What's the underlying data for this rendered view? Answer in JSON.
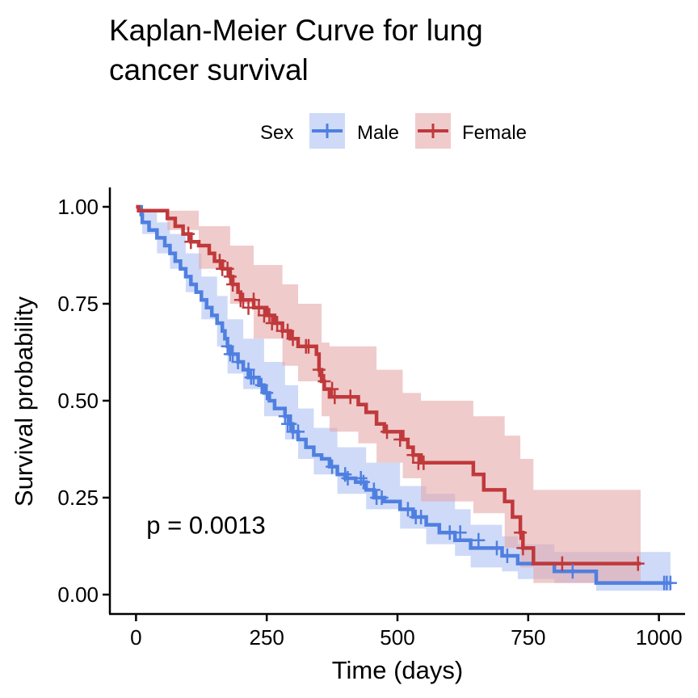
{
  "chart_data": {
    "type": "line",
    "title_lines": [
      "Kaplan-Meier Curve for lung",
      "cancer survival"
    ],
    "xlabel": "Time (days)",
    "ylabel": "Survival probability",
    "xlim": [
      -50,
      1050
    ],
    "ylim": [
      -0.05,
      1.05
    ],
    "x_ticks": [
      0,
      250,
      500,
      750,
      1000
    ],
    "x_tick_labels": [
      "0",
      "250",
      "500",
      "750",
      "1000"
    ],
    "y_ticks": [
      0,
      0.25,
      0.5,
      0.75,
      1
    ],
    "y_tick_labels": [
      "0.00",
      "0.25",
      "0.50",
      "0.75",
      "1.00"
    ],
    "legend": {
      "title": "Sex",
      "position": "top",
      "entries": [
        "Male",
        "Female"
      ]
    },
    "annotation": {
      "text": "p = 0.0013",
      "x": 20,
      "y": 0.18
    },
    "grid": false,
    "series": [
      {
        "name": "Male",
        "color": "#4f7fe0",
        "band_color": "#aec2f4",
        "steps": [
          [
            0,
            1.0
          ],
          [
            10,
            0.98
          ],
          [
            12,
            0.96
          ],
          [
            25,
            0.94
          ],
          [
            40,
            0.92
          ],
          [
            55,
            0.9
          ],
          [
            65,
            0.88
          ],
          [
            75,
            0.86
          ],
          [
            85,
            0.84
          ],
          [
            95,
            0.82
          ],
          [
            105,
            0.8
          ],
          [
            115,
            0.78
          ],
          [
            125,
            0.76
          ],
          [
            135,
            0.74
          ],
          [
            145,
            0.72
          ],
          [
            155,
            0.7
          ],
          [
            165,
            0.68
          ],
          [
            170,
            0.66
          ],
          [
            175,
            0.64
          ],
          [
            180,
            0.62
          ],
          [
            195,
            0.6
          ],
          [
            205,
            0.58
          ],
          [
            215,
            0.56
          ],
          [
            235,
            0.54
          ],
          [
            245,
            0.52
          ],
          [
            255,
            0.5
          ],
          [
            265,
            0.48
          ],
          [
            285,
            0.46
          ],
          [
            295,
            0.44
          ],
          [
            300,
            0.42
          ],
          [
            310,
            0.4
          ],
          [
            325,
            0.38
          ],
          [
            340,
            0.36
          ],
          [
            355,
            0.35
          ],
          [
            370,
            0.33
          ],
          [
            385,
            0.31
          ],
          [
            400,
            0.3
          ],
          [
            420,
            0.29
          ],
          [
            440,
            0.27
          ],
          [
            455,
            0.25
          ],
          [
            475,
            0.24
          ],
          [
            505,
            0.22
          ],
          [
            530,
            0.2
          ],
          [
            555,
            0.18
          ],
          [
            580,
            0.16
          ],
          [
            610,
            0.14
          ],
          [
            640,
            0.12
          ],
          [
            700,
            0.1
          ],
          [
            730,
            0.08
          ],
          [
            800,
            0.06
          ],
          [
            880,
            0.03
          ],
          [
            1022,
            0.03
          ]
        ],
        "lower": [
          [
            0,
            1.0
          ],
          [
            12,
            0.93
          ],
          [
            40,
            0.88
          ],
          [
            65,
            0.84
          ],
          [
            95,
            0.78
          ],
          [
            125,
            0.71
          ],
          [
            155,
            0.64
          ],
          [
            175,
            0.57
          ],
          [
            205,
            0.53
          ],
          [
            245,
            0.46
          ],
          [
            285,
            0.4
          ],
          [
            310,
            0.35
          ],
          [
            340,
            0.31
          ],
          [
            385,
            0.26
          ],
          [
            440,
            0.22
          ],
          [
            505,
            0.17
          ],
          [
            555,
            0.13
          ],
          [
            610,
            0.1
          ],
          [
            640,
            0.07
          ],
          [
            700,
            0.06
          ],
          [
            730,
            0.04
          ],
          [
            800,
            0.03
          ],
          [
            880,
            0.01
          ],
          [
            1022,
            0.01
          ]
        ],
        "upper": [
          [
            0,
            1.0
          ],
          [
            12,
            0.99
          ],
          [
            40,
            0.96
          ],
          [
            65,
            0.93
          ],
          [
            95,
            0.88
          ],
          [
            125,
            0.82
          ],
          [
            155,
            0.77
          ],
          [
            175,
            0.71
          ],
          [
            205,
            0.66
          ],
          [
            245,
            0.6
          ],
          [
            285,
            0.54
          ],
          [
            310,
            0.48
          ],
          [
            340,
            0.43
          ],
          [
            385,
            0.38
          ],
          [
            440,
            0.34
          ],
          [
            505,
            0.28
          ],
          [
            555,
            0.26
          ],
          [
            610,
            0.22
          ],
          [
            640,
            0.18
          ],
          [
            700,
            0.15
          ],
          [
            730,
            0.13
          ],
          [
            800,
            0.11
          ],
          [
            880,
            0.11
          ],
          [
            1022,
            0.11
          ]
        ],
        "censor_x": [
          175,
          180,
          185,
          195,
          215,
          220,
          225,
          240,
          250,
          285,
          290,
          295,
          300,
          310,
          375,
          400,
          405,
          430,
          435,
          455,
          460,
          470,
          520,
          535,
          545,
          600,
          620,
          655,
          690,
          710,
          835,
          1010,
          1015,
          1022
        ],
        "censor_y": [
          0.64,
          0.62,
          0.62,
          0.6,
          0.58,
          0.56,
          0.56,
          0.54,
          0.52,
          0.46,
          0.44,
          0.44,
          0.42,
          0.42,
          0.33,
          0.31,
          0.3,
          0.3,
          0.29,
          0.27,
          0.25,
          0.25,
          0.22,
          0.2,
          0.2,
          0.16,
          0.16,
          0.14,
          0.12,
          0.1,
          0.06,
          0.03,
          0.03,
          0.03
        ]
      },
      {
        "name": "Female",
        "color": "#c0393b",
        "band_color": "#e6a8aa",
        "steps": [
          [
            0,
            1.0
          ],
          [
            5,
            0.99
          ],
          [
            60,
            0.97
          ],
          [
            75,
            0.95
          ],
          [
            90,
            0.93
          ],
          [
            105,
            0.91
          ],
          [
            120,
            0.9
          ],
          [
            140,
            0.88
          ],
          [
            150,
            0.86
          ],
          [
            165,
            0.84
          ],
          [
            180,
            0.82
          ],
          [
            185,
            0.8
          ],
          [
            195,
            0.78
          ],
          [
            200,
            0.76
          ],
          [
            225,
            0.74
          ],
          [
            250,
            0.72
          ],
          [
            265,
            0.7
          ],
          [
            280,
            0.68
          ],
          [
            295,
            0.66
          ],
          [
            310,
            0.64
          ],
          [
            345,
            0.62
          ],
          [
            350,
            0.58
          ],
          [
            355,
            0.55
          ],
          [
            360,
            0.53
          ],
          [
            370,
            0.51
          ],
          [
            425,
            0.49
          ],
          [
            440,
            0.47
          ],
          [
            460,
            0.44
          ],
          [
            475,
            0.42
          ],
          [
            510,
            0.4
          ],
          [
            520,
            0.38
          ],
          [
            530,
            0.36
          ],
          [
            545,
            0.34
          ],
          [
            645,
            0.31
          ],
          [
            665,
            0.27
          ],
          [
            705,
            0.24
          ],
          [
            720,
            0.2
          ],
          [
            735,
            0.16
          ],
          [
            740,
            0.12
          ],
          [
            760,
            0.08
          ],
          [
            965,
            0.08
          ]
        ],
        "lower": [
          [
            0,
            1.0
          ],
          [
            60,
            0.94
          ],
          [
            120,
            0.84
          ],
          [
            180,
            0.75
          ],
          [
            225,
            0.66
          ],
          [
            280,
            0.59
          ],
          [
            310,
            0.55
          ],
          [
            355,
            0.46
          ],
          [
            370,
            0.42
          ],
          [
            425,
            0.39
          ],
          [
            460,
            0.34
          ],
          [
            510,
            0.3
          ],
          [
            545,
            0.24
          ],
          [
            645,
            0.21
          ],
          [
            705,
            0.12
          ],
          [
            735,
            0.07
          ],
          [
            760,
            0.03
          ],
          [
            965,
            0.03
          ]
        ],
        "upper": [
          [
            0,
            1.0
          ],
          [
            60,
            0.99
          ],
          [
            120,
            0.95
          ],
          [
            180,
            0.9
          ],
          [
            225,
            0.85
          ],
          [
            280,
            0.8
          ],
          [
            310,
            0.75
          ],
          [
            355,
            0.65
          ],
          [
            370,
            0.64
          ],
          [
            425,
            0.64
          ],
          [
            460,
            0.58
          ],
          [
            510,
            0.52
          ],
          [
            545,
            0.5
          ],
          [
            645,
            0.46
          ],
          [
            705,
            0.41
          ],
          [
            735,
            0.35
          ],
          [
            760,
            0.27
          ],
          [
            965,
            0.27
          ]
        ],
        "censor_x": [
          100,
          105,
          160,
          165,
          175,
          180,
          185,
          200,
          205,
          215,
          225,
          235,
          245,
          255,
          260,
          270,
          280,
          290,
          300,
          325,
          330,
          350,
          360,
          375,
          380,
          410,
          480,
          505,
          530,
          540,
          550,
          735,
          740,
          815,
          960
        ],
        "censor_y": [
          0.93,
          0.91,
          0.86,
          0.84,
          0.84,
          0.82,
          0.8,
          0.76,
          0.76,
          0.74,
          0.76,
          0.74,
          0.72,
          0.72,
          0.7,
          0.7,
          0.68,
          0.68,
          0.66,
          0.64,
          0.64,
          0.58,
          0.55,
          0.53,
          0.51,
          0.51,
          0.42,
          0.4,
          0.36,
          0.34,
          0.34,
          0.16,
          0.12,
          0.08,
          0.08
        ]
      }
    ]
  }
}
